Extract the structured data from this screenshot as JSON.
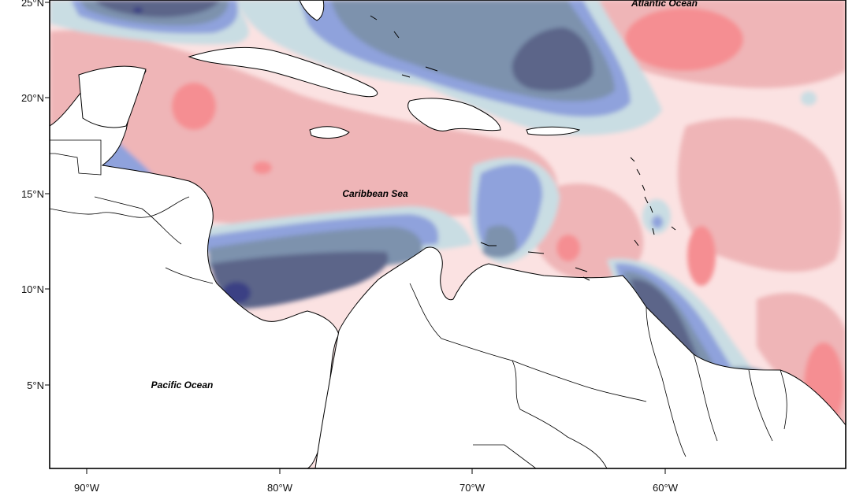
{
  "map": {
    "lon_labels": [
      "90°W",
      "80°W",
      "70°W",
      "60°W"
    ],
    "lat_labels": [
      "5°N",
      "10°N",
      "15°N",
      "20°N",
      "25°N"
    ],
    "regions": {
      "atlantic": "Atlantic Ocean",
      "caribbean": "Caribbean Sea",
      "pacific": "Pacific Ocean"
    },
    "palette": {
      "deep_navy": "#3b3f84",
      "dark_slate": "#5b6589",
      "slate_blue": "#7d92ad",
      "periwinkle": "#8fa2dc",
      "pale_blue": "#c9dde3",
      "blush": "#fbe2e2",
      "light_pink": "#efb5b7",
      "salmon": "#f58e92",
      "land": "#ffffff",
      "coastline": "#000000"
    }
  }
}
